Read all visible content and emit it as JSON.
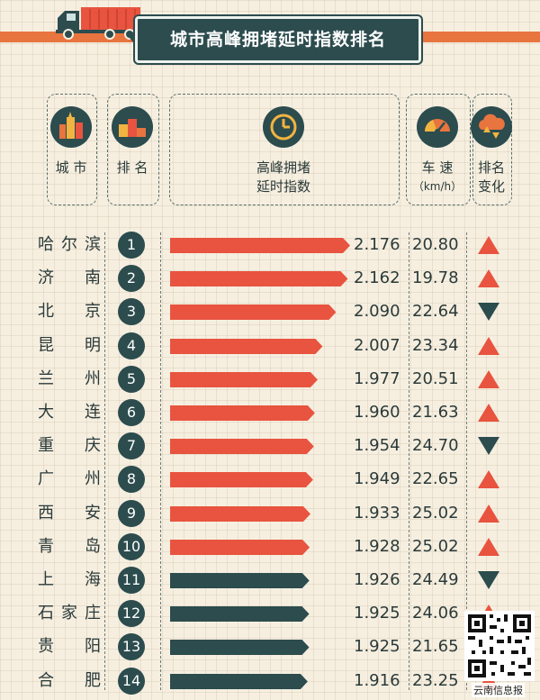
{
  "title": "城市高峰拥堵延时指数排名",
  "headers": {
    "city": "城 市",
    "rank": "排 名",
    "index_line1": "高峰拥堵",
    "index_line2": "延时指数",
    "speed_line1": "车 速",
    "speed_line2": "（km/h）",
    "change_line1": "排名",
    "change_line2": "变化"
  },
  "icons": {
    "city": "city-buildings-icon",
    "rank": "podium-icon",
    "index": "clock-icon",
    "speed": "speedometer-icon",
    "change": "cloud-arrows-icon"
  },
  "colors": {
    "accent": "#e8543f",
    "teal": "#2c4c4e",
    "orange": "#e8743f",
    "background": "#f6efe0"
  },
  "chart_data": {
    "type": "bar",
    "title": "城市高峰拥堵延时指数排名",
    "orientation": "horizontal",
    "categories": [
      "哈尔滨",
      "济南",
      "北京",
      "昆明",
      "兰州",
      "大连",
      "重庆",
      "广州",
      "西安",
      "青岛",
      "上海",
      "石家庄",
      "贵阳",
      "合肥"
    ],
    "series": [
      {
        "name": "高峰拥堵延时指数",
        "values": [
          2.176,
          2.162,
          2.09,
          2.007,
          1.977,
          1.96,
          1.954,
          1.949,
          1.933,
          1.928,
          1.926,
          1.925,
          1.925,
          1.916
        ]
      },
      {
        "name": "车速（km/h）",
        "values": [
          20.8,
          19.78,
          22.64,
          23.34,
          20.51,
          21.63,
          24.7,
          22.65,
          25.02,
          25.02,
          24.49,
          24.06,
          21.65,
          23.25
        ]
      }
    ],
    "rows": [
      {
        "city": "哈尔滨",
        "rank": "1",
        "index": "2.176",
        "speed": "20.80",
        "change": "up"
      },
      {
        "city": "济南",
        "rank": "2",
        "index": "2.162",
        "speed": "19.78",
        "change": "up"
      },
      {
        "city": "北京",
        "rank": "3",
        "index": "2.090",
        "speed": "22.64",
        "change": "down"
      },
      {
        "city": "昆明",
        "rank": "4",
        "index": "2.007",
        "speed": "23.34",
        "change": "up"
      },
      {
        "city": "兰州",
        "rank": "5",
        "index": "1.977",
        "speed": "20.51",
        "change": "up"
      },
      {
        "city": "大连",
        "rank": "6",
        "index": "1.960",
        "speed": "21.63",
        "change": "up"
      },
      {
        "city": "重庆",
        "rank": "7",
        "index": "1.954",
        "speed": "24.70",
        "change": "down"
      },
      {
        "city": "广州",
        "rank": "8",
        "index": "1.949",
        "speed": "22.65",
        "change": "up"
      },
      {
        "city": "西安",
        "rank": "9",
        "index": "1.933",
        "speed": "25.02",
        "change": "up"
      },
      {
        "city": "青岛",
        "rank": "10",
        "index": "1.928",
        "speed": "25.02",
        "change": "up"
      },
      {
        "city": "上海",
        "rank": "11",
        "index": "1.926",
        "speed": "24.49",
        "change": "down"
      },
      {
        "city": "石家庄",
        "rank": "12",
        "index": "1.925",
        "speed": "24.06",
        "change": "up"
      },
      {
        "city": "贵阳",
        "rank": "13",
        "index": "1.925",
        "speed": "21.65",
        "change": "up"
      },
      {
        "city": "合肥",
        "rank": "14",
        "index": "1.916",
        "speed": "23.25",
        "change": "up"
      }
    ],
    "bar_color_top10": "#e8543f",
    "bar_color_rest": "#2c4c4e",
    "up_color": "#e8543f",
    "down_color": "#2c4c4e"
  },
  "watermark": "云南信息报",
  "qr_code": "qr-code-icon"
}
